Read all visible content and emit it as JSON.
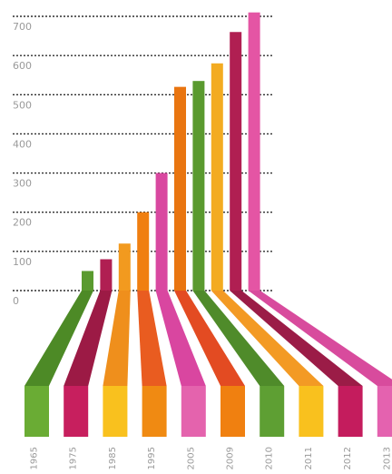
{
  "chart_data": {
    "type": "bar",
    "title": "",
    "xlabel": "",
    "ylabel": "",
    "ylim": [
      0,
      700
    ],
    "yticks": [
      0,
      100,
      200,
      300,
      400,
      500,
      600,
      700
    ],
    "grid": true,
    "categories": [
      "1965",
      "1975",
      "1985",
      "1995",
      "2005",
      "2009",
      "2010",
      "2011",
      "2012",
      "2013"
    ],
    "values": [
      50,
      80,
      120,
      200,
      300,
      520,
      535,
      580,
      660,
      710
    ],
    "colors": [
      "#5a9a2f",
      "#b01f52",
      "#f29a1f",
      "#f07f10",
      "#d948a0",
      "#e97510",
      "#5a9a2f",
      "#f3ab21",
      "#b01f52",
      "#e455a4"
    ],
    "bottom_colors": [
      "#6aac34",
      "#c71f5e",
      "#f9c11e",
      "#f08a12",
      "#e463ad",
      "#f08010",
      "#5e9f33",
      "#f9c11e",
      "#c41c5d",
      "#e462af"
    ],
    "ribbon_colors": [
      "#4d8a26",
      "#9c1a45",
      "#ef8f1c",
      "#e95c20",
      "#d946a0",
      "#e34b22",
      "#4f8b2a",
      "#f39a24",
      "#9b1c47",
      "#d84b9d"
    ]
  }
}
